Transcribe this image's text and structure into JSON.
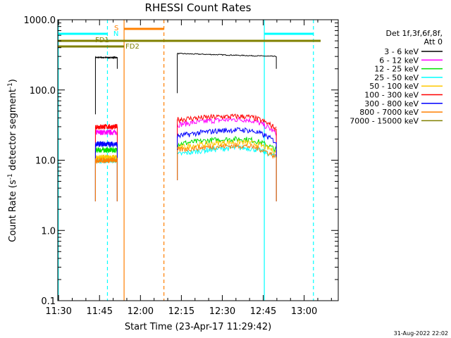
{
  "chart_data": {
    "type": "line",
    "title": "RHESSI Count Rates",
    "xlabel": "Start Time (23-Apr-17 11:29:42)",
    "ylabel_main": "Count Rate (s",
    "ylabel_sup": "-1",
    "ylabel_tail": " detector segment",
    "ylabel_sup2": "-1",
    "ylabel_close": ")",
    "y_scale": "log",
    "ylim": [
      0.1,
      1000
    ],
    "x_ticks": [
      "11:30",
      "11:45",
      "12:00",
      "12:15",
      "12:30",
      "12:45",
      "13:00"
    ],
    "x_tick_minutes": [
      30,
      45,
      60,
      75,
      90,
      105,
      120
    ],
    "xlim_minutes": [
      29.7,
      132.5
    ],
    "y_ticks": [
      "1000.0",
      "100.0",
      "10.0",
      "1.0",
      "0.1"
    ],
    "y_tick_values": [
      1000,
      100,
      10,
      1,
      0.1
    ],
    "legend": {
      "position": "right",
      "header1": "Det 1f,3f,6f,8f,",
      "header2": "Att 0",
      "entries": [
        {
          "label": "3 - 6 keV",
          "color": "#000000"
        },
        {
          "label": "6 - 12 keV",
          "color": "#ff00ff"
        },
        {
          "label": "12 - 25 keV",
          "color": "#00e000"
        },
        {
          "label": "25 - 50 keV",
          "color": "#00ffff"
        },
        {
          "label": "50 - 100 keV",
          "color": "#ffc800"
        },
        {
          "label": "100 - 300 keV",
          "color": "#ff0000"
        },
        {
          "label": "300 - 800 keV",
          "color": "#0000ff"
        },
        {
          "label": "800 - 7000 keV",
          "color": "#ff8000"
        },
        {
          "label": "7000 - 15000 keV",
          "color": "#808000"
        }
      ]
    },
    "segments_minutes": [
      [
        43.5,
        51.5
      ],
      [
        73.5,
        109.8
      ]
    ],
    "series": [
      {
        "name": "3 - 6 keV",
        "color": "#000000",
        "seg1": [
          290,
          290
        ],
        "seg2": [
          330,
          300
        ]
      },
      {
        "name": "6 - 12 keV",
        "color": "#ff00ff",
        "seg1": [
          25,
          25
        ],
        "seg2": [
          32,
          38,
          24
        ]
      },
      {
        "name": "12 - 25 keV",
        "color": "#00e000",
        "seg1": [
          14,
          14
        ],
        "seg2": [
          17,
          20,
          14
        ]
      },
      {
        "name": "25 - 50 keV",
        "color": "#00ffff",
        "seg1": [
          10,
          10
        ],
        "seg2": [
          12,
          15,
          11
        ]
      },
      {
        "name": "50 - 100 keV",
        "color": "#ffc800",
        "seg1": [
          11,
          11
        ],
        "seg2": [
          15,
          18,
          13
        ]
      },
      {
        "name": "100 - 300 keV",
        "color": "#ff0000",
        "seg1": [
          30,
          30
        ],
        "seg2": [
          38,
          42,
          28
        ]
      },
      {
        "name": "300 - 800 keV",
        "color": "#0000ff",
        "seg1": [
          17,
          17
        ],
        "seg2": [
          22,
          27,
          18
        ]
      },
      {
        "name": "800 - 7000 keV",
        "color": "#ff8000",
        "seg1": [
          10,
          10
        ],
        "seg2": [
          14,
          16,
          11
        ]
      }
    ],
    "annotations": [
      {
        "label": "S",
        "color": "#ff8000"
      },
      {
        "label": "N",
        "color": "#00ffff"
      },
      {
        "label": "FD1",
        "color": "#808000"
      },
      {
        "label": "FD2",
        "color": "#808000"
      }
    ],
    "footer_date": "31-Aug-2022 22:02"
  }
}
